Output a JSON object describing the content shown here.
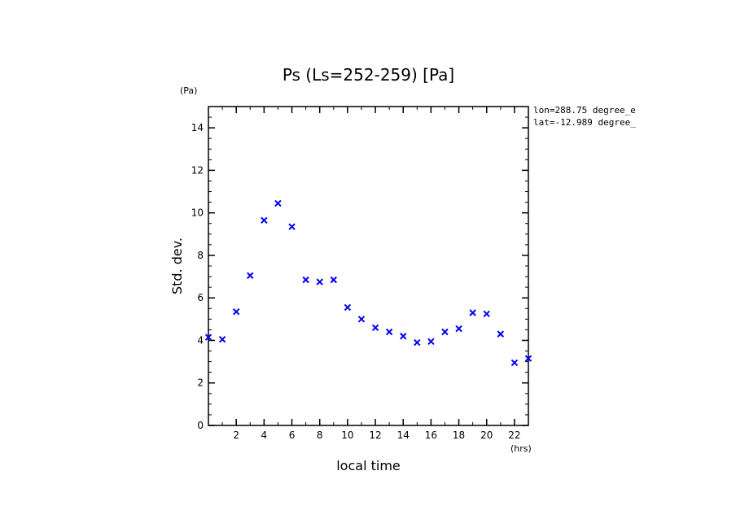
{
  "chart_data": {
    "type": "scatter",
    "title": "Ps (Ls=252-259) [Pa]",
    "xlabel": "local time",
    "ylabel": "Std. dev.",
    "x_unit": "(hrs)",
    "y_unit": "(Pa)",
    "xlim": [
      0,
      23
    ],
    "ylim": [
      0,
      15
    ],
    "x_ticks": [
      "2",
      "4",
      "6",
      "8",
      "10",
      "12",
      "14",
      "16",
      "18",
      "20",
      "22"
    ],
    "y_ticks": [
      "0",
      "2",
      "4",
      "6",
      "8",
      "10",
      "12",
      "14"
    ],
    "marker": "x",
    "color": "#0000ff",
    "grid": false,
    "annotations": [
      "lon=288.75 degree_e",
      "lat=-12.989 degree_"
    ],
    "series": [
      {
        "x": [
          0,
          1,
          2,
          3,
          4,
          5,
          6,
          7,
          8,
          9,
          10,
          11,
          12,
          13,
          14,
          15,
          16,
          17,
          18,
          19,
          20,
          21,
          22,
          23
        ],
        "y": [
          4.15,
          4.05,
          5.35,
          7.05,
          9.65,
          10.45,
          9.35,
          6.85,
          6.75,
          6.85,
          5.55,
          5.0,
          4.6,
          4.4,
          4.2,
          3.9,
          3.95,
          4.4,
          4.55,
          5.3,
          5.25,
          4.3,
          2.95,
          3.15
        ]
      }
    ]
  }
}
